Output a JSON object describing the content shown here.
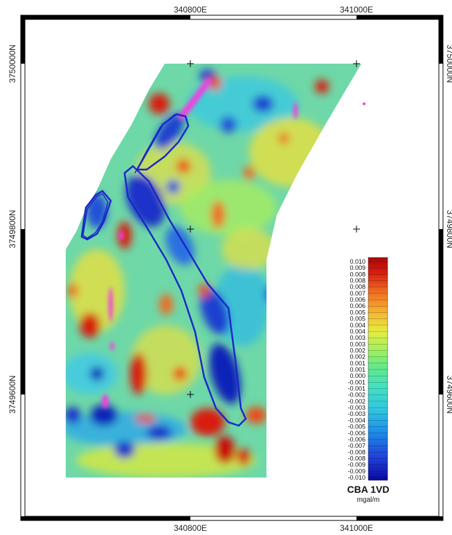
{
  "map": {
    "top_labels": [
      "340800E",
      "341000E"
    ],
    "bottom_labels": [
      "340800E",
      "341000E"
    ],
    "left_labels": [
      "3750000N",
      "3749800N",
      "3749600N"
    ],
    "right_labels": [
      "3750000N",
      "3749800N",
      "3749600N"
    ]
  },
  "colorbar": {
    "title": "CBA 1VD",
    "unit": "mgal/m",
    "ticks": [
      "0.010",
      "0.009",
      "0.008",
      "0.008",
      "0.008",
      "0.007",
      "0.006",
      "0.006",
      "0.005",
      "0.005",
      "0.004",
      "0.004",
      "0.003",
      "0.003",
      "0.002",
      "0.002",
      "0.001",
      "0.001",
      "0.000",
      "-0.001",
      "-0.001",
      "-0.002",
      "-0.002",
      "-0.003",
      "-0.003",
      "-0.004",
      "-0.005",
      "-0.006",
      "-0.006",
      "-0.007",
      "-0.008",
      "-0.008",
      "-0.009",
      "-0.009",
      "-0.010"
    ],
    "colors": [
      "#0a0aa0",
      "#1f3fd8",
      "#1e8fe8",
      "#30c8e0",
      "#45e0c0",
      "#5ee890",
      "#9ef060",
      "#e8ec40",
      "#f4b030",
      "#ee6a20",
      "#d81e10",
      "#a80808"
    ]
  }
}
